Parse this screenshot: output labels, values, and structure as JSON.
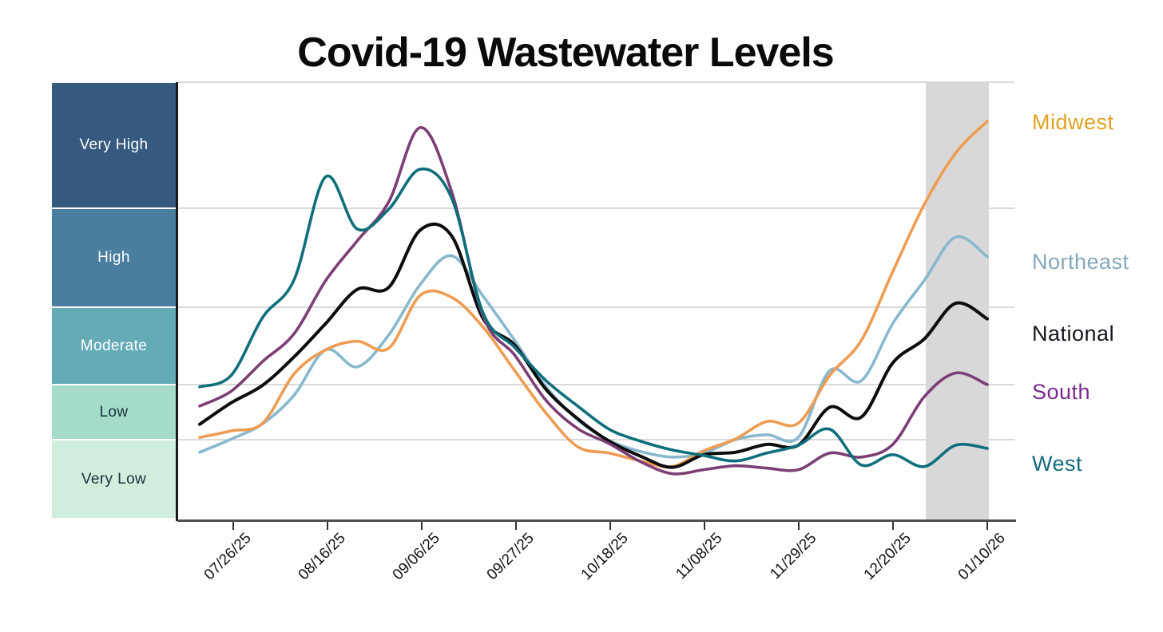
{
  "title": "Covid-19 Wastewater Levels",
  "y_axis": {
    "bands": [
      {
        "label": "Very High",
        "color": "#35597f",
        "text_color": "#ffffff"
      },
      {
        "label": "High",
        "color": "#497e9e",
        "text_color": "#ffffff"
      },
      {
        "label": "Moderate",
        "color": "#64abb6",
        "text_color": "#ffffff"
      },
      {
        "label": "Low",
        "color": "#a5dbc9",
        "text_color": "#17323a"
      },
      {
        "label": "Very Low",
        "color": "#cfeede",
        "text_color": "#17323a"
      }
    ]
  },
  "x_axis": {
    "tick_labels": [
      "07/26/25",
      "08/16/25",
      "09/06/25",
      "09/27/25",
      "10/18/25",
      "11/08/25",
      "11/29/25",
      "12/20/25",
      "01/10/26"
    ]
  },
  "legend": [
    {
      "label": "Midwest",
      "text_color": "#e1a11f"
    },
    {
      "label": "Northeast",
      "text_color": "#86a7bb"
    },
    {
      "label": "National",
      "text_color": "#15151c"
    },
    {
      "label": "South",
      "text_color": "#7a2b8c"
    },
    {
      "label": "West",
      "text_color": "#156a7d"
    }
  ],
  "chart_data": {
    "type": "line",
    "title": "Covid-19 Wastewater Levels",
    "x_tick_labels": [
      "07/26/25",
      "08/16/25",
      "09/06/25",
      "09/27/25",
      "10/18/25",
      "11/08/25",
      "11/29/25",
      "12/20/25",
      "01/10/26"
    ],
    "x_weekly_dates": [
      "07/19/25",
      "07/26/25",
      "08/02/25",
      "08/09/25",
      "08/16/25",
      "08/23/25",
      "08/30/25",
      "09/06/25",
      "09/13/25",
      "09/20/25",
      "09/27/25",
      "10/04/25",
      "10/11/25",
      "10/18/25",
      "10/25/25",
      "11/01/25",
      "11/08/25",
      "11/15/25",
      "11/22/25",
      "11/29/25",
      "12/06/25",
      "12/13/25",
      "12/20/25",
      "12/27/25",
      "01/03/26",
      "01/10/26"
    ],
    "y_scale": {
      "type": "categorical-bands",
      "bands_bottom_to_top": [
        "Very Low",
        "Low",
        "Moderate",
        "High",
        "Very High"
      ],
      "unit_note": "values in band units: 0=chart bottom, 1=Low lower edge, 2=Moderate lower edge, 3=High lower edge, 4=Very High lower edge, 5=chart top"
    },
    "shaded_region": {
      "from_date": "12/27/25",
      "to_date": "01/10/26"
    },
    "legend_position": "right-of-plot, each label at series end level",
    "grid": "horizontal band boundaries only",
    "series": [
      {
        "name": "Midwest",
        "line_color": "#ef9c53",
        "values": [
          1.04,
          1.16,
          1.3,
          2.14,
          2.45,
          2.56,
          2.47,
          3.12,
          3.1,
          2.74,
          2.18,
          1.48,
          0.91,
          0.83,
          0.73,
          0.66,
          0.86,
          1.01,
          1.33,
          1.3,
          2.12,
          2.57,
          3.36,
          4.03,
          4.44,
          4.69
        ]
      },
      {
        "name": "Northeast",
        "line_color": "#88b8ce",
        "values": [
          0.84,
          1.01,
          1.29,
          1.81,
          2.45,
          2.23,
          2.64,
          3.23,
          3.52,
          3.11,
          2.57,
          1.96,
          1.36,
          0.99,
          0.85,
          0.78,
          0.83,
          1.0,
          1.09,
          1.04,
          2.18,
          2.05,
          2.79,
          3.27,
          3.71,
          3.51
        ]
      },
      {
        "name": "National",
        "line_color": "#0c0c0c",
        "values": [
          1.28,
          1.67,
          1.99,
          2.36,
          2.79,
          3.18,
          3.2,
          3.78,
          3.72,
          2.85,
          2.51,
          1.91,
          1.38,
          0.98,
          0.79,
          0.65,
          0.81,
          0.84,
          0.94,
          0.93,
          1.59,
          1.41,
          2.28,
          2.59,
          3.04,
          2.85
        ]
      },
      {
        "name": "South",
        "line_color": "#7c3e74",
        "values": [
          1.61,
          1.88,
          2.3,
          2.66,
          3.27,
          3.67,
          4.05,
          4.64,
          4.13,
          2.88,
          2.38,
          1.71,
          1.2,
          0.95,
          0.72,
          0.57,
          0.62,
          0.67,
          0.64,
          0.62,
          0.83,
          0.78,
          0.94,
          1.78,
          2.15,
          2.0
        ]
      },
      {
        "name": "West",
        "line_color": "#0e6e7b",
        "values": [
          1.96,
          2.12,
          2.87,
          3.28,
          4.25,
          3.79,
          3.99,
          4.31,
          4.08,
          2.92,
          2.48,
          2.05,
          1.61,
          1.19,
          0.98,
          0.87,
          0.8,
          0.73,
          0.83,
          0.93,
          1.19,
          0.68,
          0.81,
          0.66,
          0.93,
          0.89
        ]
      }
    ]
  }
}
